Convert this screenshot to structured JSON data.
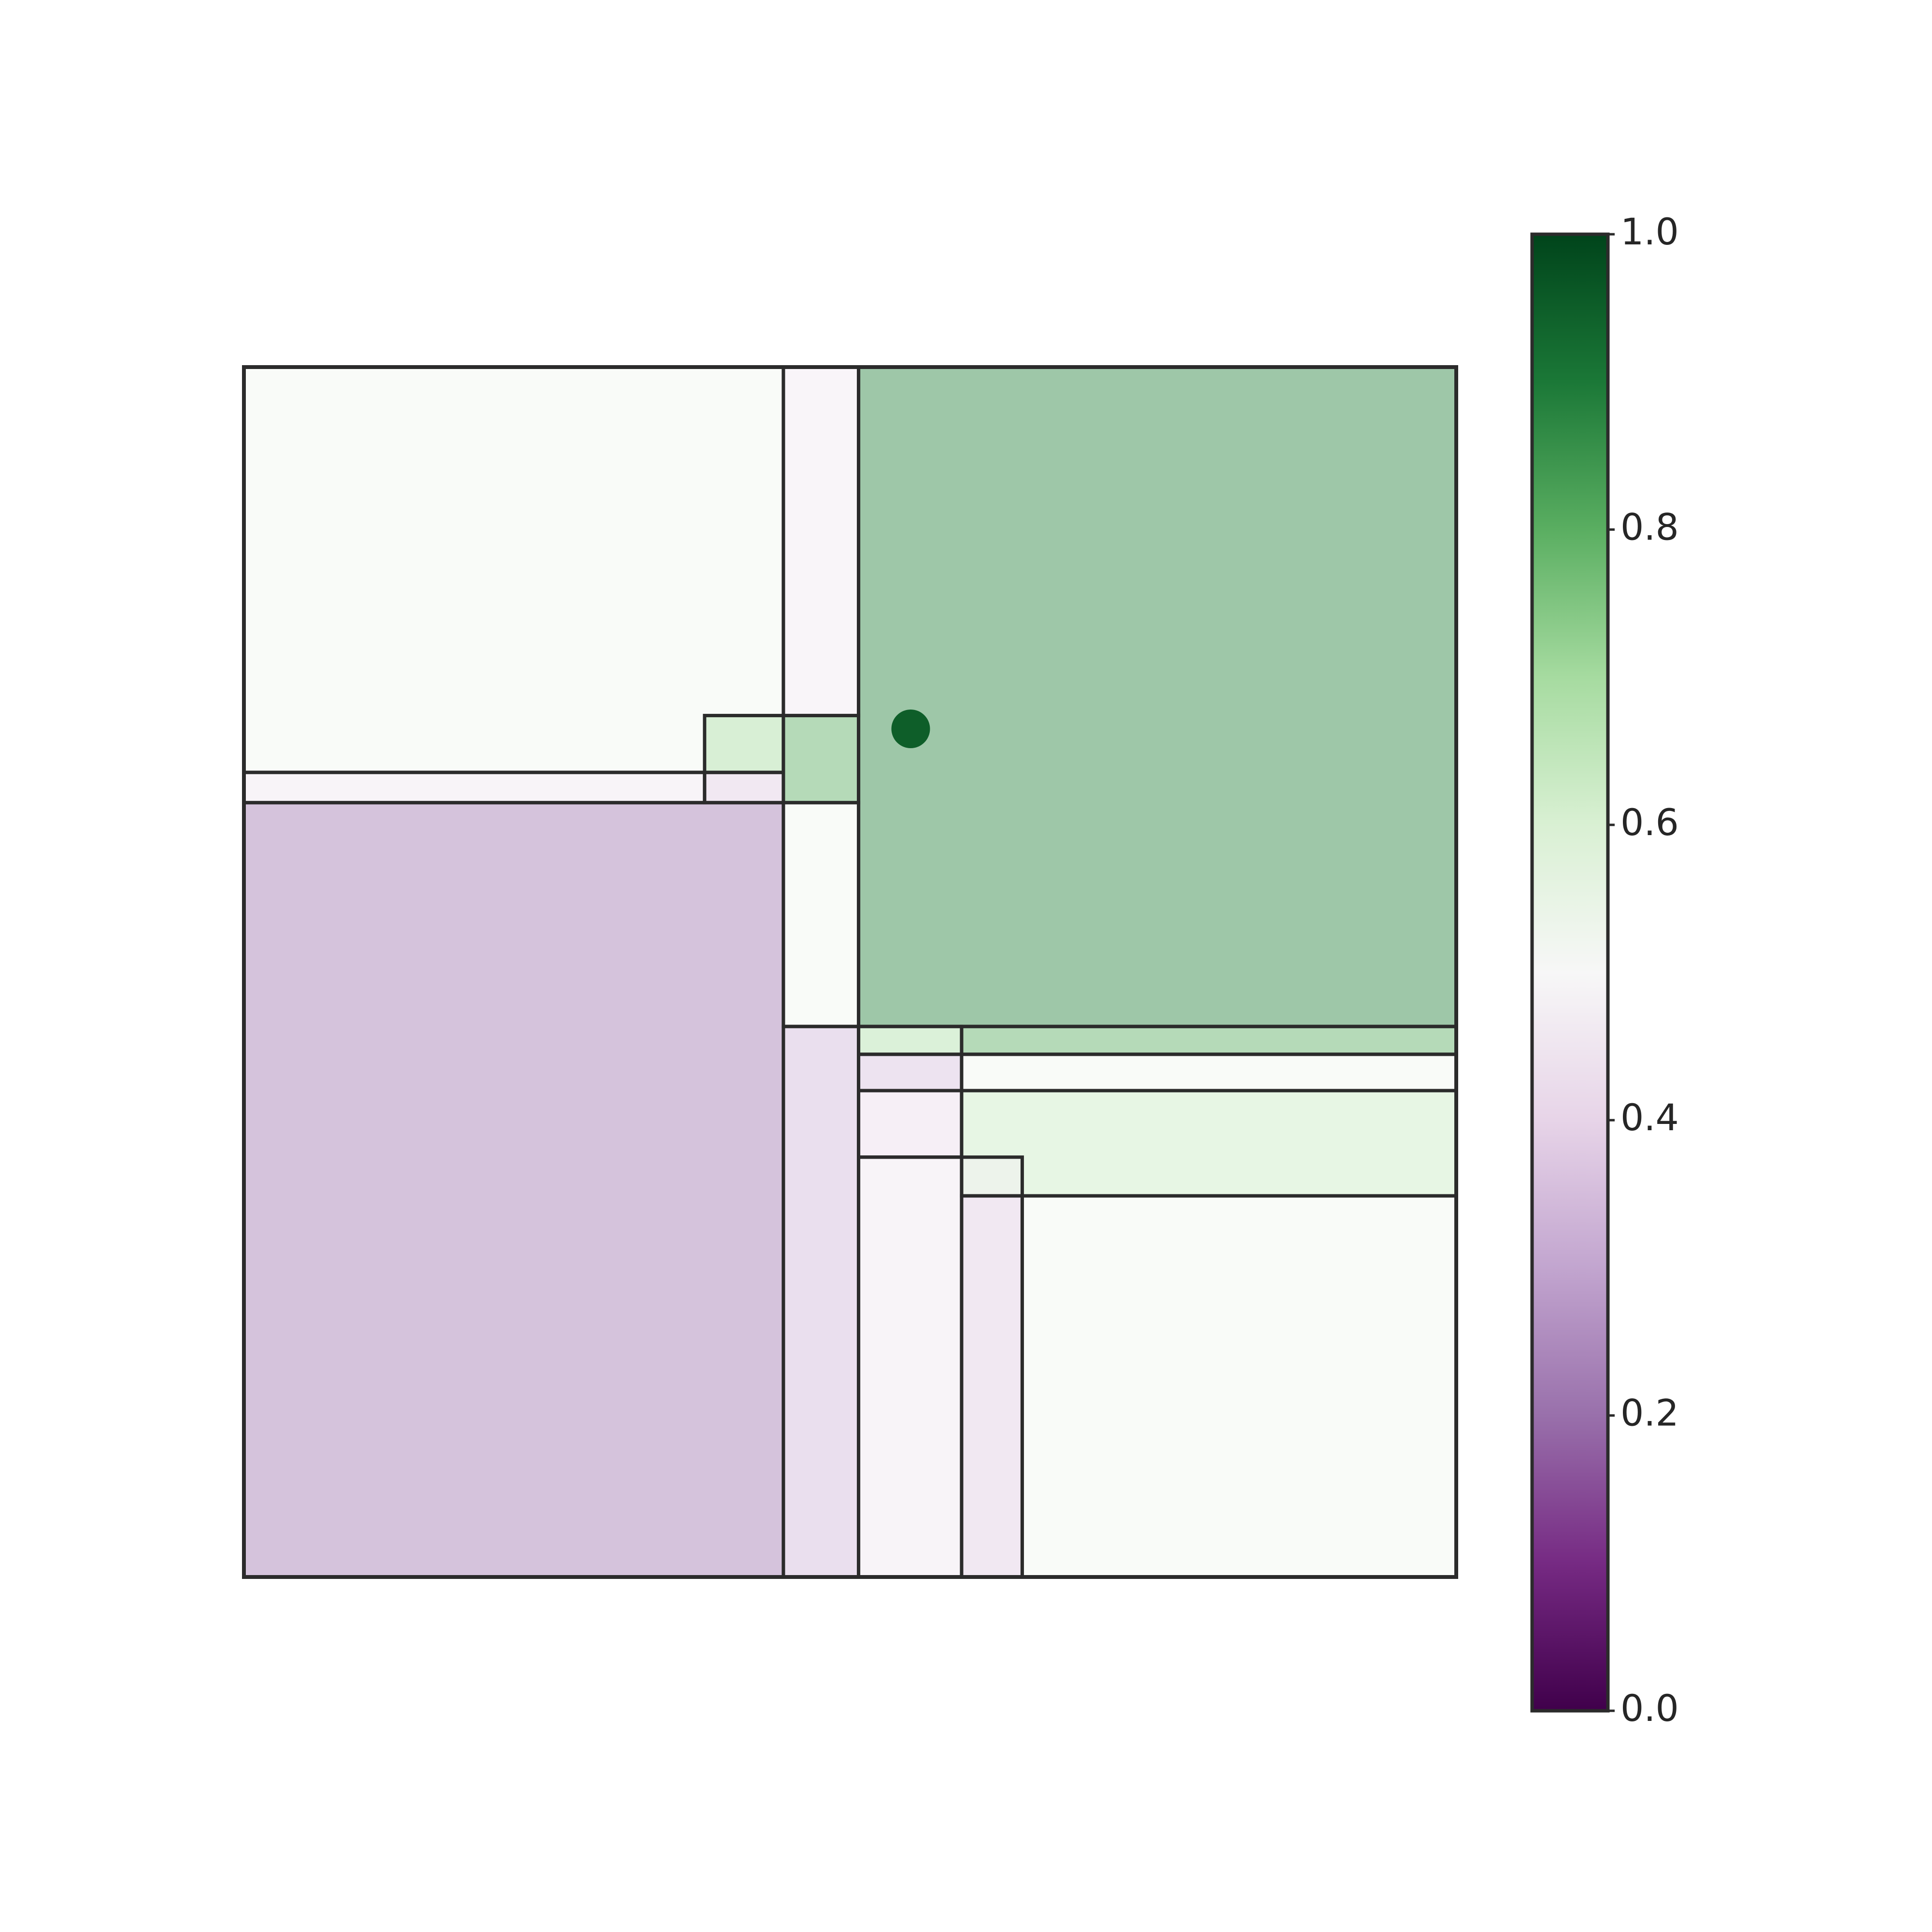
{
  "chart_data": {
    "type": "heatmap",
    "subtype": "partition-rectangles",
    "title": "",
    "xlabel": "",
    "ylabel": "",
    "axes_visible": false,
    "grid": false,
    "xlim": [
      0,
      1
    ],
    "ylim": [
      0,
      1
    ],
    "colormap": "PRGn",
    "cell_alpha": 0.45,
    "edge_color": "#2b2b2b",
    "cells": [
      {
        "x0": 0.0,
        "x1": 0.445,
        "y0": 0.665,
        "y1": 1.0,
        "value": 0.52
      },
      {
        "x0": 0.0,
        "x1": 0.38,
        "y0": 0.64,
        "y1": 0.665,
        "value": 0.45
      },
      {
        "x0": 0.38,
        "x1": 0.445,
        "y0": 0.64,
        "y1": 0.665,
        "value": 0.38
      },
      {
        "x0": 0.38,
        "x1": 0.445,
        "y0": 0.665,
        "y1": 0.712,
        "value": 0.68
      },
      {
        "x0": 0.445,
        "x1": 0.507,
        "y0": 0.712,
        "y1": 1.0,
        "value": 0.46
      },
      {
        "x0": 0.445,
        "x1": 0.507,
        "y0": 0.64,
        "y1": 0.712,
        "value": 0.8
      },
      {
        "x0": 0.507,
        "x1": 1.0,
        "y0": 0.455,
        "y1": 1.0,
        "value": 0.88
      },
      {
        "x0": 0.0,
        "x1": 0.445,
        "y0": 0.0,
        "y1": 0.64,
        "value": 0.22
      },
      {
        "x0": 0.445,
        "x1": 0.507,
        "y0": 0.455,
        "y1": 0.64,
        "value": 0.52
      },
      {
        "x0": 0.445,
        "x1": 0.507,
        "y0": 0.0,
        "y1": 0.455,
        "value": 0.34
      },
      {
        "x0": 0.507,
        "x1": 0.592,
        "y0": 0.432,
        "y1": 0.455,
        "value": 0.68
      },
      {
        "x0": 0.592,
        "x1": 1.0,
        "y0": 0.432,
        "y1": 0.455,
        "value": 0.8
      },
      {
        "x0": 0.507,
        "x1": 0.592,
        "y0": 0.402,
        "y1": 0.432,
        "value": 0.36
      },
      {
        "x0": 0.592,
        "x1": 1.0,
        "y0": 0.402,
        "y1": 0.432,
        "value": 0.52
      },
      {
        "x0": 0.507,
        "x1": 0.592,
        "y0": 0.347,
        "y1": 0.402,
        "value": 0.42
      },
      {
        "x0": 0.592,
        "x1": 1.0,
        "y0": 0.315,
        "y1": 0.402,
        "value": 0.63
      },
      {
        "x0": 0.592,
        "x1": 0.642,
        "y0": 0.315,
        "y1": 0.347,
        "value": 0.48
      },
      {
        "x0": 0.507,
        "x1": 0.592,
        "y0": 0.0,
        "y1": 0.347,
        "value": 0.45
      },
      {
        "x0": 0.592,
        "x1": 0.642,
        "y0": 0.0,
        "y1": 0.315,
        "value": 0.38
      },
      {
        "x0": 0.642,
        "x1": 1.0,
        "y0": 0.0,
        "y1": 0.315,
        "value": 0.52
      }
    ],
    "point": {
      "x": 0.55,
      "y": 0.701,
      "value": 0.95
    },
    "colorbar": {
      "range": [
        0.0,
        1.0
      ],
      "ticks": [
        0.0,
        0.2,
        0.4,
        0.6,
        0.8,
        1.0
      ],
      "tick_labels": [
        "0.0",
        "0.2",
        "0.4",
        "0.6",
        "0.8",
        "1.0"
      ]
    }
  }
}
